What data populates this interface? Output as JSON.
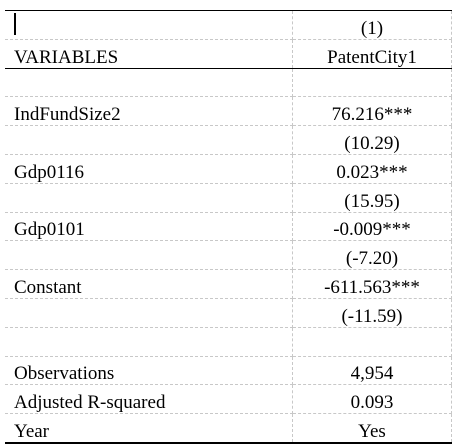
{
  "table": {
    "header": {
      "model_number": "(1)",
      "variables_label": "VARIABLES",
      "dependent_variable": "PatentCity1"
    },
    "rows": [
      {
        "label": "IndFundSize2",
        "value": "76.216***"
      },
      {
        "label": "",
        "value": "(10.29)"
      },
      {
        "label": "Gdp0116",
        "value": "0.023***"
      },
      {
        "label": "",
        "value": "(15.95)"
      },
      {
        "label": "Gdp0101",
        "value": "-0.009***"
      },
      {
        "label": "",
        "value": "(-7.20)"
      },
      {
        "label": "Constant",
        "value": "-611.563***"
      },
      {
        "label": "",
        "value": "(-11.59)"
      }
    ],
    "stats": [
      {
        "label": "Observations",
        "value": "4,954"
      },
      {
        "label": "Adjusted R-squared",
        "value": "0.093"
      },
      {
        "label": "Year",
        "value": "Yes"
      }
    ]
  }
}
